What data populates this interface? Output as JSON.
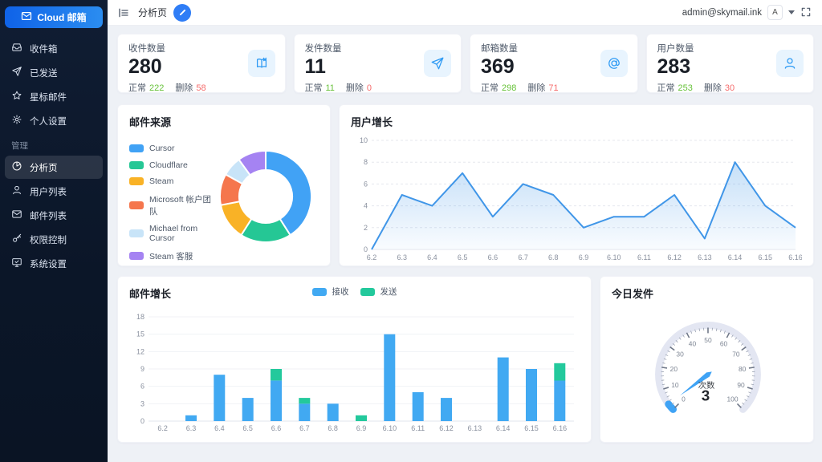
{
  "app": {
    "logo_label": "Cloud 邮箱"
  },
  "sidebar": {
    "main_items": [
      {
        "label": "收件箱",
        "icon": "inbox-icon",
        "active": false
      },
      {
        "label": "已发送",
        "icon": "send-icon",
        "active": false
      },
      {
        "label": "星标邮件",
        "icon": "star-icon",
        "active": false
      },
      {
        "label": "个人设置",
        "icon": "gear-icon",
        "active": false
      }
    ],
    "section_label": "管理",
    "admin_items": [
      {
        "label": "分析页",
        "icon": "pie-icon",
        "active": true
      },
      {
        "label": "用户列表",
        "icon": "user-icon",
        "active": false
      },
      {
        "label": "邮件列表",
        "icon": "mail-icon",
        "active": false
      },
      {
        "label": "权限控制",
        "icon": "key-icon",
        "active": false
      },
      {
        "label": "系统设置",
        "icon": "monitor-icon",
        "active": false
      }
    ]
  },
  "header": {
    "tab_label": "分析页",
    "user_email": "admin@skymail.ink",
    "avatar_letter": "A"
  },
  "stats": [
    {
      "label": "收件数量",
      "value": "280",
      "normal_label": "正常",
      "normal": "222",
      "deleted_label": "删除",
      "deleted": "58",
      "icon": "book-icon"
    },
    {
      "label": "发件数量",
      "value": "11",
      "normal_label": "正常",
      "normal": "11",
      "deleted_label": "删除",
      "deleted": "0",
      "icon": "send-icon"
    },
    {
      "label": "邮箱数量",
      "value": "369",
      "normal_label": "正常",
      "normal": "298",
      "deleted_label": "删除",
      "deleted": "71",
      "icon": "at-icon"
    },
    {
      "label": "用户数量",
      "value": "283",
      "normal_label": "正常",
      "normal": "253",
      "deleted_label": "删除",
      "deleted": "30",
      "icon": "user-icon"
    }
  ],
  "colors": {
    "accent": "#2f8cf6",
    "success": "#67c23a",
    "danger": "#f56c6c",
    "icon_bg": "#e8f4fe",
    "icon_fg": "#2f9bf4"
  },
  "chart_data": [
    {
      "type": "pie",
      "title": "邮件来源",
      "labels": [
        "Cursor",
        "Cloudflare",
        "Steam",
        "Microsoft 帐户团队",
        "Michael from Cursor",
        "Steam 客服"
      ],
      "values": [
        41,
        18,
        13,
        11,
        7,
        10
      ],
      "colors": [
        "#41a2f5",
        "#25c795",
        "#f9b226",
        "#f5764d",
        "#c8e4f8",
        "#a583f2"
      ],
      "inner_radius_ratio": 0.58,
      "legend_position": "left"
    },
    {
      "type": "area",
      "title": "用户增长",
      "x": [
        "6.2",
        "6.3",
        "6.4",
        "6.5",
        "6.6",
        "6.7",
        "6.8",
        "6.9",
        "6.10",
        "6.11",
        "6.12",
        "6.13",
        "6.14",
        "6.15",
        "6.16"
      ],
      "values": [
        0,
        5,
        4,
        7,
        3,
        6,
        5,
        2,
        3,
        3,
        5,
        1,
        8,
        4,
        2
      ],
      "ylim": [
        0,
        10
      ],
      "yticks": [
        0,
        2,
        4,
        6,
        8,
        10
      ],
      "grid": "dashed",
      "line_color": "#4096e8"
    },
    {
      "type": "bar",
      "title": "邮件增长",
      "stacked": true,
      "categories": [
        "6.2",
        "6.3",
        "6.4",
        "6.5",
        "6.6",
        "6.7",
        "6.8",
        "6.9",
        "6.10",
        "6.11",
        "6.12",
        "6.13",
        "6.14",
        "6.15",
        "6.16"
      ],
      "series": [
        {
          "name": "接收",
          "color": "#41a9f2",
          "values": [
            0,
            1,
            8,
            4,
            7,
            3,
            3,
            0,
            15,
            5,
            4,
            0,
            11,
            9,
            7
          ]
        },
        {
          "name": "发送",
          "color": "#23c99c",
          "values": [
            0,
            0,
            0,
            0,
            2,
            1,
            0,
            1,
            0,
            0,
            0,
            0,
            0,
            0,
            3
          ]
        }
      ],
      "ylim": [
        0,
        18
      ],
      "yticks": [
        0,
        3,
        6,
        9,
        12,
        15,
        18
      ],
      "legend_position": "top"
    },
    {
      "type": "gauge",
      "title": "今日发件",
      "min": 0,
      "max": 100,
      "value": 3,
      "label": "次数",
      "tick_labels": [
        0,
        10,
        20,
        30,
        40,
        50,
        60,
        70,
        80,
        90,
        100
      ],
      "ring_color": "#e3e6f2",
      "needle_color": "#3fa3f5"
    }
  ]
}
